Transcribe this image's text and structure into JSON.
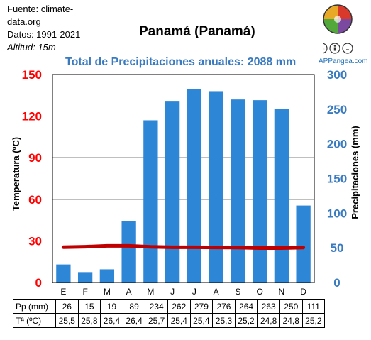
{
  "source": {
    "line1": "Fuente: climate-",
    "line2": "data.org",
    "line3": "Datos: 1991-2021",
    "line4": "Altitud: 15m"
  },
  "site": "APPangea.com",
  "table": {
    "precip_label": "Pp (mm)",
    "temp_label": "Tª (ºC)",
    "precip_values": [
      "26",
      "15",
      "19",
      "89",
      "234",
      "262",
      "279",
      "276",
      "264",
      "263",
      "250",
      "111"
    ],
    "temp_values": [
      "25,5",
      "25,8",
      "26,4",
      "26,4",
      "25,7",
      "25,4",
      "25,4",
      "25,3",
      "25,2",
      "24,8",
      "24,8",
      "25,2"
    ]
  },
  "chart_data": {
    "type": "bar",
    "title": "Panamá (Panamá)",
    "subtitle": "Total de Precipitaciones anuales: 2088 mm",
    "categories": [
      "E",
      "F",
      "M",
      "A",
      "M",
      "J",
      "J",
      "A",
      "S",
      "O",
      "N",
      "D"
    ],
    "series": [
      {
        "name": "Pp (mm)",
        "type": "bar",
        "axis": "right",
        "color": "#2e86d6",
        "values": [
          26,
          15,
          19,
          89,
          234,
          262,
          279,
          276,
          264,
          263,
          250,
          111
        ]
      },
      {
        "name": "Tª (ºC)",
        "type": "line",
        "axis": "left",
        "color": "#c00000",
        "values": [
          25.5,
          25.8,
          26.4,
          26.4,
          25.7,
          25.4,
          25.4,
          25.3,
          25.2,
          24.8,
          24.8,
          25.2
        ]
      }
    ],
    "left_axis": {
      "label": "Temperatura (ºC)",
      "range": [
        0,
        150
      ],
      "ticks": [
        0,
        30,
        60,
        90,
        120,
        150
      ],
      "color": "#ff0000"
    },
    "right_axis": {
      "label": "Precipitaciones (mm)",
      "range": [
        0,
        300
      ],
      "ticks": [
        0,
        50,
        100,
        150,
        200,
        250,
        300
      ],
      "color": "#3a7bc0"
    },
    "grid": true
  }
}
